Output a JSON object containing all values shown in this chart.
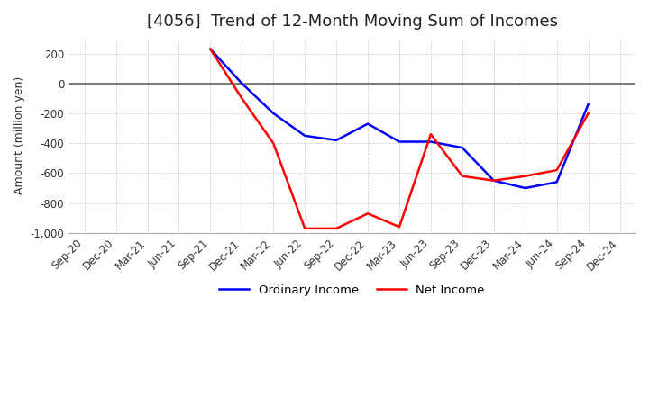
{
  "title": "[4056]  Trend of 12-Month Moving Sum of Incomes",
  "ylabel": "Amount (million yen)",
  "background_color": "#ffffff",
  "grid_color": "#bbbbbb",
  "ylim": [
    -1000,
    300
  ],
  "yticks": [
    -1000,
    -800,
    -600,
    -400,
    -200,
    0,
    200
  ],
  "x_labels": [
    "Sep-20",
    "Dec-20",
    "Mar-21",
    "Jun-21",
    "Sep-21",
    "Dec-21",
    "Mar-22",
    "Jun-22",
    "Sep-22",
    "Dec-22",
    "Mar-23",
    "Jun-23",
    "Sep-23",
    "Dec-23",
    "Mar-24",
    "Jun-24",
    "Sep-24",
    "Dec-24"
  ],
  "ordinary_income": [
    null,
    null,
    null,
    null,
    230,
    0,
    -200,
    -350,
    -380,
    -270,
    -390,
    -390,
    -430,
    -650,
    -700,
    -660,
    -140,
    null
  ],
  "net_income": [
    null,
    null,
    null,
    null,
    230,
    -100,
    -400,
    -970,
    -970,
    -870,
    -960,
    -340,
    -620,
    -650,
    -620,
    -580,
    -200,
    null
  ],
  "ordinary_color": "#0000ff",
  "net_color": "#ff0000",
  "legend_labels": [
    "Ordinary Income",
    "Net Income"
  ],
  "zero_line_color": "#666666",
  "title_fontsize": 13,
  "label_fontsize": 9,
  "tick_fontsize": 8.5
}
